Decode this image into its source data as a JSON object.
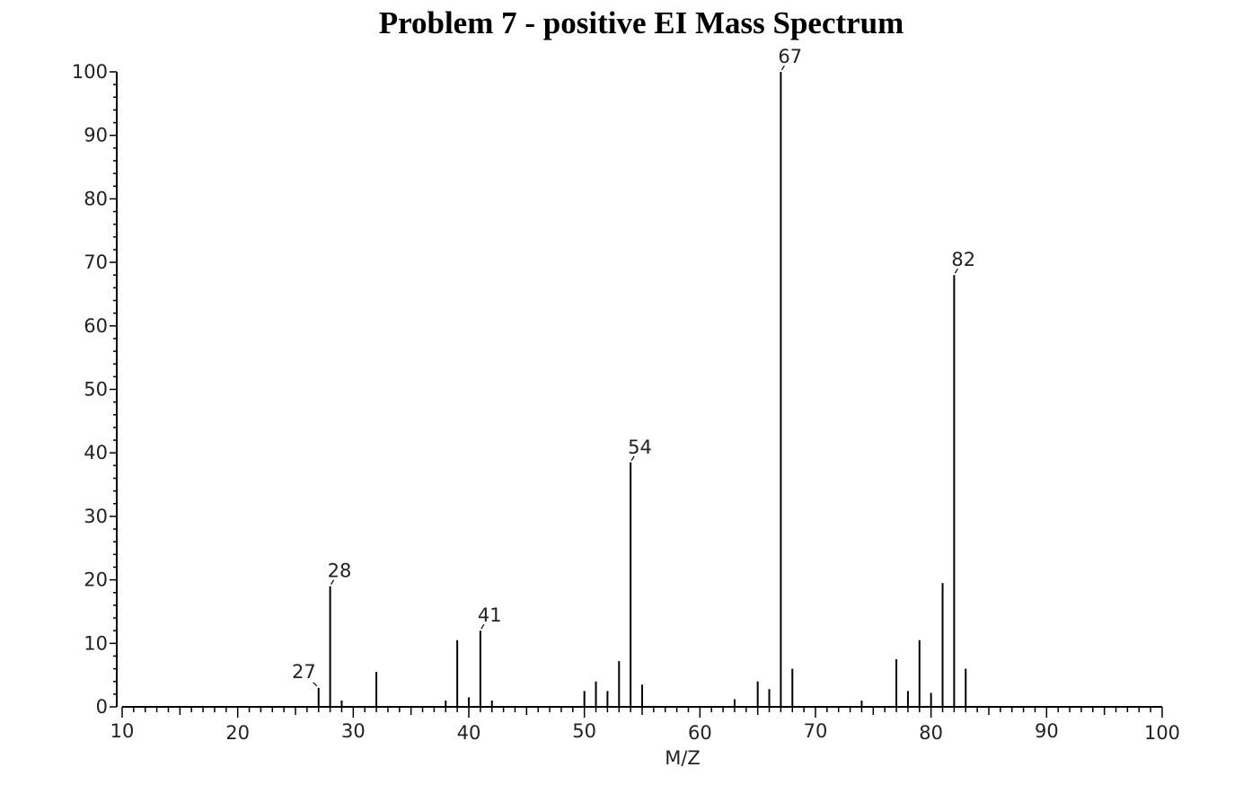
{
  "chart_data": {
    "type": "bar",
    "title": "Problem 7 - positive EI Mass Spectrum",
    "xlabel": "M/Z",
    "ylabel": "",
    "xlim": [
      10,
      100
    ],
    "ylim": [
      0,
      100
    ],
    "x_ticks": [
      10,
      20,
      30,
      40,
      50,
      60,
      70,
      80,
      90,
      100
    ],
    "y_ticks": [
      0,
      10,
      20,
      30,
      40,
      50,
      60,
      70,
      80,
      90,
      100
    ],
    "grid": false,
    "peaks": [
      {
        "mz": 27,
        "intensity": 3
      },
      {
        "mz": 28,
        "intensity": 19
      },
      {
        "mz": 29,
        "intensity": 1
      },
      {
        "mz": 32,
        "intensity": 5.5
      },
      {
        "mz": 38,
        "intensity": 1
      },
      {
        "mz": 39,
        "intensity": 10.5
      },
      {
        "mz": 40,
        "intensity": 1.5
      },
      {
        "mz": 41,
        "intensity": 12
      },
      {
        "mz": 42,
        "intensity": 1
      },
      {
        "mz": 50,
        "intensity": 2.5
      },
      {
        "mz": 51,
        "intensity": 4
      },
      {
        "mz": 52,
        "intensity": 2.5
      },
      {
        "mz": 53,
        "intensity": 7.2
      },
      {
        "mz": 54,
        "intensity": 38.5
      },
      {
        "mz": 55,
        "intensity": 3.5
      },
      {
        "mz": 63,
        "intensity": 1.2
      },
      {
        "mz": 65,
        "intensity": 4
      },
      {
        "mz": 66,
        "intensity": 2.8
      },
      {
        "mz": 67,
        "intensity": 100
      },
      {
        "mz": 68,
        "intensity": 6
      },
      {
        "mz": 74,
        "intensity": 1
      },
      {
        "mz": 77,
        "intensity": 7.5
      },
      {
        "mz": 78,
        "intensity": 2.5
      },
      {
        "mz": 79,
        "intensity": 10.5
      },
      {
        "mz": 80,
        "intensity": 2.2
      },
      {
        "mz": 81,
        "intensity": 19.5
      },
      {
        "mz": 82,
        "intensity": 68
      },
      {
        "mz": 83,
        "intensity": 6
      }
    ],
    "peak_labels": [
      {
        "mz": 27,
        "text": "27"
      },
      {
        "mz": 28,
        "text": "28"
      },
      {
        "mz": 41,
        "text": "41"
      },
      {
        "mz": 54,
        "text": "54"
      },
      {
        "mz": 67,
        "text": "67"
      },
      {
        "mz": 82,
        "text": "82"
      }
    ]
  }
}
